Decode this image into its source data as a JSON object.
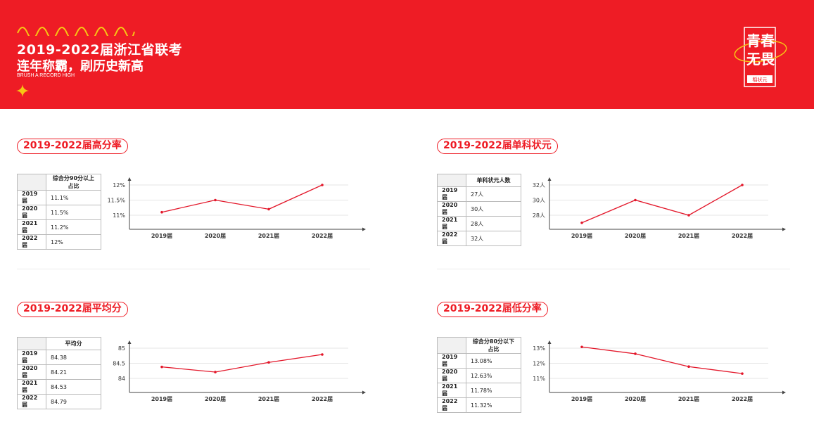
{
  "header": {
    "title_line1": "2019-2022届浙江省联考",
    "title_line2": "连年称霸，刷历史新高",
    "subtitle_en": "BRUSH A RECORD HIGH",
    "logo_main": "青春无畏",
    "logo_brand": "稻状元"
  },
  "colors": {
    "brand_red": "#ee1c25",
    "line_red": "#e3172a"
  },
  "sections": [
    {
      "title": "2019-2022届高分率",
      "table": {
        "header": [
          "",
          "综合分90分以上占比"
        ],
        "rows": [
          [
            "2019届",
            "11.1%"
          ],
          [
            "2020届",
            "11.5%"
          ],
          [
            "2021届",
            "11.2%"
          ],
          [
            "2022届",
            "12%"
          ]
        ]
      },
      "chart_data": {
        "type": "line",
        "categories": [
          "2019届",
          "2020届",
          "2021届",
          "2022届"
        ],
        "values": [
          11.1,
          11.5,
          11.2,
          12
        ],
        "y_ticks": [
          11,
          11.5,
          12
        ],
        "y_tick_labels": [
          "11%",
          "11.5%",
          "12%"
        ],
        "grid": true
      }
    },
    {
      "title": "2019-2022届单科状元",
      "table": {
        "header": [
          "",
          "单科状元人数"
        ],
        "rows": [
          [
            "2019届",
            "27人"
          ],
          [
            "2020届",
            "30人"
          ],
          [
            "2021届",
            "28人"
          ],
          [
            "2022届",
            "32人"
          ]
        ]
      },
      "chart_data": {
        "type": "line",
        "categories": [
          "2019届",
          "2020届",
          "2021届",
          "2022届"
        ],
        "values": [
          27,
          30,
          28,
          32
        ],
        "y_ticks": [
          28,
          30,
          32
        ],
        "y_tick_labels": [
          "28人",
          "30人",
          "32人"
        ],
        "grid": true
      }
    },
    {
      "title": "2019-2022届平均分",
      "table": {
        "header": [
          "",
          "平均分"
        ],
        "rows": [
          [
            "2019届",
            "84.38"
          ],
          [
            "2020届",
            "84.21"
          ],
          [
            "2021届",
            "84.53"
          ],
          [
            "2022届",
            "84.79"
          ]
        ]
      },
      "chart_data": {
        "type": "line",
        "categories": [
          "2019届",
          "2020届",
          "2021届",
          "2022届"
        ],
        "values": [
          84.38,
          84.21,
          84.53,
          84.79
        ],
        "y_ticks": [
          84,
          84.5,
          85
        ],
        "y_tick_labels": [
          "84",
          "84.5",
          "85"
        ],
        "grid": true
      }
    },
    {
      "title": "2019-2022届低分率",
      "table": {
        "header": [
          "",
          "综合分80分以下占比"
        ],
        "rows": [
          [
            "2019届",
            "13.08%"
          ],
          [
            "2020届",
            "12.63%"
          ],
          [
            "2021届",
            "11.78%"
          ],
          [
            "2022届",
            "11.32%"
          ]
        ]
      },
      "chart_data": {
        "type": "line",
        "categories": [
          "2019届",
          "2020届",
          "2021届",
          "2022届"
        ],
        "values": [
          13.08,
          12.63,
          11.78,
          11.32
        ],
        "y_ticks": [
          11,
          12,
          13
        ],
        "y_tick_labels": [
          "11%",
          "12%",
          "13%"
        ],
        "grid": true
      }
    }
  ]
}
